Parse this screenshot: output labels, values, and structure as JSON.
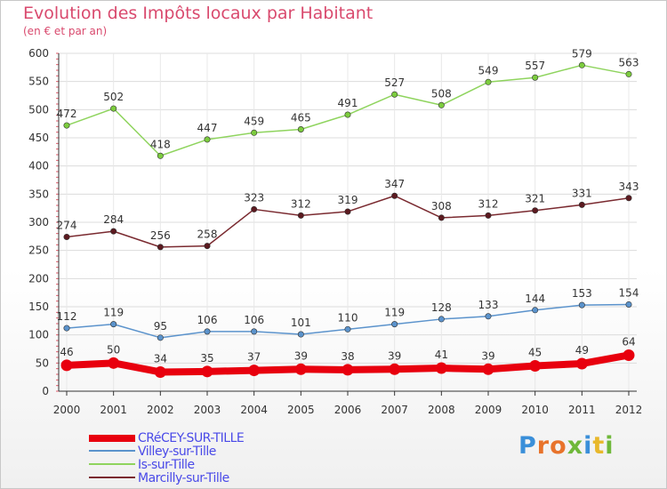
{
  "header": {
    "title": "Evolution des Impôts locaux par Habitant",
    "subtitle": "(en € et par an)"
  },
  "logo": {
    "text": "Proxiti",
    "colors": [
      "#3a8fd9",
      "#e8732b",
      "#e8732b",
      "#6fb83a",
      "#3a8fd9",
      "#e8b82b",
      "#6fb83a"
    ]
  },
  "chart_data": {
    "type": "line",
    "title": "Evolution des Impôts locaux par Habitant",
    "subtitle": "(en € et par an)",
    "xlabel": "",
    "ylabel": "",
    "x": [
      "2000",
      "2001",
      "2002",
      "2003",
      "2004",
      "2005",
      "2006",
      "2007",
      "2008",
      "2009",
      "2010",
      "2011",
      "2012"
    ],
    "ylim": [
      0,
      600
    ],
    "yticks": [
      0,
      50,
      100,
      150,
      200,
      250,
      300,
      350,
      400,
      450,
      500,
      550,
      600
    ],
    "yticks_labels": [
      "0",
      "50",
      "100",
      "150",
      "200",
      "250",
      "300",
      "350",
      "400",
      "450",
      "500",
      "550",
      "600"
    ],
    "grid": true,
    "legend_position": "bottom-left",
    "series": [
      {
        "name": "CRéCEY-SUR-TILLE",
        "color": "#e8000e",
        "marker_fill": "#e8000e",
        "bold": true,
        "values": [
          46,
          50,
          34,
          35,
          37,
          39,
          38,
          39,
          41,
          39,
          45,
          49,
          64
        ],
        "labels": [
          "46",
          "50",
          "34",
          "35",
          "37",
          "39",
          "38",
          "39",
          "41",
          "39",
          "45",
          "49",
          "64"
        ]
      },
      {
        "name": "Villey-sur-Tille",
        "color": "#5b93cc",
        "marker_fill": "#5b93cc",
        "bold": false,
        "values": [
          112,
          119,
          95,
          106,
          106,
          101,
          110,
          119,
          128,
          133,
          144,
          153,
          154
        ],
        "labels": [
          "112",
          "119",
          "95",
          "106",
          "106",
          "101",
          "110",
          "119",
          "128",
          "133",
          "144",
          "153",
          "154"
        ]
      },
      {
        "name": "Is-sur-Tille",
        "color": "#8fd45e",
        "marker_fill": "#7ccc3e",
        "bold": false,
        "values": [
          472,
          502,
          418,
          447,
          459,
          465,
          491,
          527,
          508,
          549,
          557,
          579,
          563
        ],
        "labels": [
          "472",
          "502",
          "418",
          "447",
          "459",
          "465",
          "491",
          "527",
          "508",
          "549",
          "557",
          "579",
          "563"
        ]
      },
      {
        "name": "Marcilly-sur-Tille",
        "color": "#7a2a30",
        "marker_fill": "#5c1a20",
        "bold": false,
        "values": [
          274,
          284,
          256,
          258,
          323,
          312,
          319,
          347,
          308,
          312,
          321,
          331,
          343
        ],
        "labels": [
          "274",
          "284",
          "256",
          "258",
          "323",
          "312",
          "319",
          "347",
          "308",
          "312",
          "321",
          "331",
          "343"
        ]
      }
    ]
  }
}
